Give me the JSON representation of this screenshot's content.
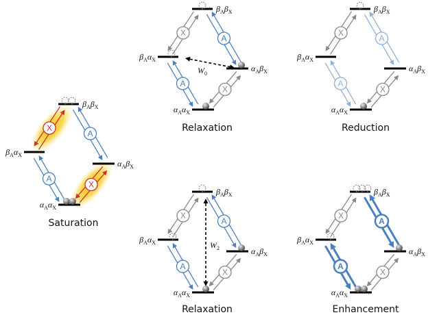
{
  "captions": {
    "saturation": "Saturation",
    "relaxation_top": "Relaxation",
    "reduction": "Reduction",
    "relaxation_bottom": "Relaxation",
    "enhancement": "Enhancement"
  },
  "states": {
    "bb": {
      "g1": "β",
      "s1": "A",
      "g2": "β",
      "s2": "X"
    },
    "ba": {
      "g1": "β",
      "s1": "A",
      "g2": "α",
      "s2": "X"
    },
    "ab": {
      "g1": "α",
      "s1": "A",
      "g2": "β",
      "s2": "X"
    },
    "aa": {
      "g1": "α",
      "s1": "A",
      "g2": "α",
      "s2": "X"
    }
  },
  "transition_labels": {
    "a": "A",
    "x": "X"
  },
  "rates": {
    "w0": {
      "sym": "W",
      "sub": "0"
    },
    "w2": {
      "sym": "W",
      "sub": "2"
    }
  },
  "colors": {
    "a": "#4a7fc0",
    "a_light": "#8fb1de",
    "x": "#888888",
    "x_sat": "#c83232",
    "glow": "#f7c40d",
    "level": "#000000"
  }
}
